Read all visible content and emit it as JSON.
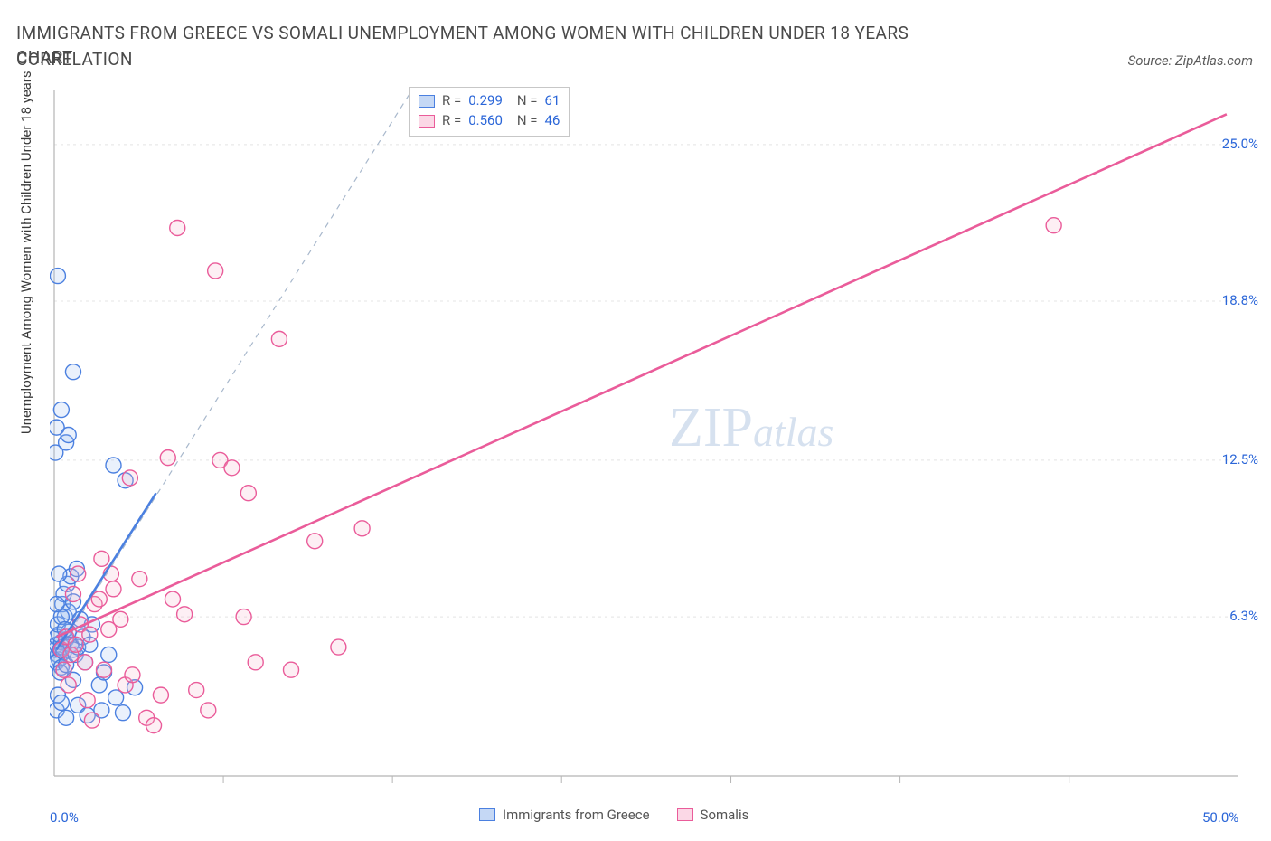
{
  "title": "IMMIGRANTS FROM GREECE VS SOMALI UNEMPLOYMENT AMONG WOMEN WITH CHILDREN UNDER 18 YEARS CORRELATION",
  "subtitle": "CHART",
  "source_label": "Source: ZipAtlas.com",
  "y_axis_label": "Unemployment Among Women with Children Under 18 years",
  "watermark": {
    "part1": "ZIP",
    "part2": "atlas"
  },
  "chart": {
    "type": "scatter",
    "background_color": "#ffffff",
    "grid_color": "#e4e4e4",
    "axis_color": "#b5b5b5",
    "xlim": [
      0,
      50
    ],
    "ylim": [
      0,
      27
    ],
    "x_ticks": [
      0,
      50
    ],
    "x_tick_labels": [
      "0.0%",
      "50.0%"
    ],
    "x_minor_grid": [
      7.14,
      14.28,
      21.42,
      28.57,
      35.71,
      42.85
    ],
    "y_ticks": [
      6.3,
      12.5,
      18.8,
      25.0
    ],
    "y_tick_labels": [
      "6.3%",
      "12.5%",
      "18.8%",
      "25.0%"
    ],
    "marker_radius": 8.5,
    "marker_stroke_width": 1.4,
    "marker_fill_opacity": 0.22,
    "trend_line_width": 2.6,
    "diagonal_line_color": "#a8b8cc",
    "series": [
      {
        "name": "Immigrants from Greece",
        "color_stroke": "#4b80e0",
        "color_fill": "#9fbdf0",
        "swatch_fill": "#c5d8f5",
        "R": "0.299",
        "N": "61",
        "trend": {
          "x1": 0.1,
          "y1": 5.0,
          "x2": 4.3,
          "y2": 11.2
        },
        "points": [
          [
            0.05,
            5.0
          ],
          [
            0.1,
            5.2
          ],
          [
            0.15,
            4.8
          ],
          [
            0.2,
            4.6
          ],
          [
            0.1,
            5.5
          ],
          [
            0.3,
            5.3
          ],
          [
            0.25,
            5.0
          ],
          [
            0.2,
            5.6
          ],
          [
            0.35,
            5.1
          ],
          [
            0.1,
            4.5
          ],
          [
            0.15,
            6.0
          ],
          [
            0.4,
            4.9
          ],
          [
            0.3,
            4.3
          ],
          [
            0.5,
            5.4
          ],
          [
            0.25,
            4.1
          ],
          [
            0.6,
            5.7
          ],
          [
            0.7,
            5.2
          ],
          [
            0.45,
            6.3
          ],
          [
            0.5,
            4.4
          ],
          [
            0.8,
            5.0
          ],
          [
            0.35,
            6.8
          ],
          [
            0.9,
            4.8
          ],
          [
            0.6,
            6.5
          ],
          [
            1.0,
            5.1
          ],
          [
            0.4,
            7.2
          ],
          [
            0.55,
            7.6
          ],
          [
            1.2,
            5.5
          ],
          [
            0.7,
            7.9
          ],
          [
            0.8,
            6.9
          ],
          [
            1.1,
            6.2
          ],
          [
            1.5,
            5.2
          ],
          [
            1.3,
            4.5
          ],
          [
            1.6,
            6.0
          ],
          [
            1.9,
            3.6
          ],
          [
            2.1,
            4.1
          ],
          [
            2.3,
            4.8
          ],
          [
            2.6,
            3.1
          ],
          [
            2.9,
            2.5
          ],
          [
            0.15,
            3.2
          ],
          [
            0.1,
            2.6
          ],
          [
            0.3,
            2.9
          ],
          [
            0.5,
            2.3
          ],
          [
            1.0,
            2.8
          ],
          [
            1.4,
            2.4
          ],
          [
            2.0,
            2.6
          ],
          [
            0.8,
            3.8
          ],
          [
            0.95,
            8.2
          ],
          [
            0.2,
            8.0
          ],
          [
            0.05,
            12.8
          ],
          [
            0.5,
            13.2
          ],
          [
            0.6,
            13.5
          ],
          [
            0.1,
            13.8
          ],
          [
            0.3,
            14.5
          ],
          [
            0.8,
            16.0
          ],
          [
            0.15,
            19.8
          ],
          [
            2.5,
            12.3
          ],
          [
            3.0,
            11.7
          ],
          [
            3.4,
            3.5
          ],
          [
            0.3,
            6.3
          ],
          [
            0.45,
            5.8
          ],
          [
            0.1,
            6.8
          ]
        ]
      },
      {
        "name": "Somalis",
        "color_stroke": "#ea5c9a",
        "color_fill": "#f5b4cf",
        "swatch_fill": "#fbd8e6",
        "R": "0.560",
        "N": "46",
        "trend": {
          "x1": 0.1,
          "y1": 5.5,
          "x2": 49.5,
          "y2": 26.2
        },
        "points": [
          [
            0.3,
            5.0
          ],
          [
            0.5,
            5.5
          ],
          [
            0.7,
            4.8
          ],
          [
            0.9,
            5.2
          ],
          [
            1.1,
            6.0
          ],
          [
            1.3,
            4.5
          ],
          [
            1.5,
            5.6
          ],
          [
            1.7,
            6.8
          ],
          [
            1.9,
            7.0
          ],
          [
            2.1,
            4.2
          ],
          [
            2.3,
            5.8
          ],
          [
            2.5,
            7.4
          ],
          [
            2.8,
            6.2
          ],
          [
            3.0,
            3.6
          ],
          [
            3.3,
            4.0
          ],
          [
            3.6,
            7.8
          ],
          [
            3.9,
            2.3
          ],
          [
            4.2,
            2.0
          ],
          [
            4.5,
            3.2
          ],
          [
            5.0,
            7.0
          ],
          [
            5.5,
            6.4
          ],
          [
            6.0,
            3.4
          ],
          [
            6.5,
            2.6
          ],
          [
            7.0,
            12.5
          ],
          [
            7.5,
            12.2
          ],
          [
            8.0,
            6.3
          ],
          [
            8.5,
            4.5
          ],
          [
            9.5,
            17.3
          ],
          [
            10.0,
            4.2
          ],
          [
            11.0,
            9.3
          ],
          [
            12.0,
            5.1
          ],
          [
            13.0,
            9.8
          ],
          [
            6.8,
            20.0
          ],
          [
            5.2,
            21.7
          ],
          [
            8.2,
            11.2
          ],
          [
            0.8,
            7.2
          ],
          [
            1.0,
            8.0
          ],
          [
            1.4,
            3.0
          ],
          [
            0.4,
            4.2
          ],
          [
            0.6,
            3.6
          ],
          [
            2.0,
            8.6
          ],
          [
            3.2,
            11.8
          ],
          [
            4.8,
            12.6
          ],
          [
            42.2,
            21.8
          ],
          [
            1.6,
            2.2
          ],
          [
            2.4,
            8.0
          ]
        ]
      }
    ],
    "legend_top": {
      "r_label": "R =",
      "n_label": "N ="
    },
    "legend_bottom": [
      {
        "label": "Immigrants from Greece",
        "series": 0
      },
      {
        "label": "Somalis",
        "series": 1
      }
    ]
  }
}
